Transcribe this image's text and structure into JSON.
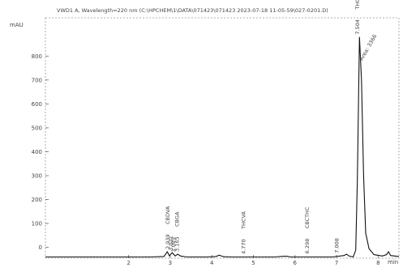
{
  "chart_data": {
    "type": "line",
    "title": "VWD1 A, Wavelength=220 nm (C:\\HPCHEM\\1\\DATA\\071423\\071423 2023-07-18 11-05-59\\027-0201.D)",
    "ylabel": "mAU",
    "xlabel": "min",
    "xlim": [
      0,
      8.5
    ],
    "ylim": [
      -45,
      960
    ],
    "x_ticks": [
      2,
      3,
      4,
      5,
      6,
      7,
      8
    ],
    "y_ticks": [
      0,
      100,
      200,
      300,
      400,
      500,
      600,
      700,
      800
    ],
    "grid": false,
    "series": [
      {
        "x": [
          0.0,
          2.5,
          2.85,
          2.93,
          2.98,
          3.05,
          3.12,
          3.18,
          3.25,
          3.4,
          3.9,
          4.1,
          4.18,
          4.28,
          4.5,
          5.5,
          5.75,
          5.8,
          5.9,
          6.5,
          6.9,
          7.18,
          7.24,
          7.3,
          7.4,
          7.46,
          7.5,
          7.55,
          7.6,
          7.65,
          7.7,
          7.78,
          7.9,
          8.1,
          8.2,
          8.25,
          8.3,
          8.5
        ],
        "y": [
          -40,
          -40,
          -38,
          -18,
          -35,
          -22,
          -36,
          -28,
          -36,
          -40,
          -40,
          -38,
          -32,
          -39,
          -40,
          -40,
          -37,
          -37,
          -40,
          -40,
          -40,
          -34,
          -28,
          -36,
          -40,
          -12,
          280,
          880,
          700,
          300,
          60,
          -5,
          -30,
          -36,
          -30,
          -18,
          -34,
          -38
        ]
      }
    ],
    "peak_labels": [
      {
        "time": "2.939",
        "name": "CBDVA",
        "x": 2.939,
        "y": -18
      },
      {
        "time": "3.165",
        "name": "CBGA",
        "x": 3.165,
        "y": -28
      },
      {
        "time": "3.021",
        "name": "",
        "x": 3.021,
        "y": -24
      },
      {
        "time": "3.085",
        "name": "",
        "x": 3.085,
        "y": -30
      },
      {
        "time": "4.770",
        "name": "THCVA",
        "x": 4.77,
        "y": -38
      },
      {
        "time": "6.298",
        "name": "CBCTHC",
        "x": 6.298,
        "y": -36
      },
      {
        "time": "7.008",
        "name": "",
        "x": 7.008,
        "y": -34
      },
      {
        "time": "7.504",
        "name": "THCA",
        "x": 7.504,
        "y": 880
      }
    ],
    "annotations": [
      {
        "text": "Area: 3366",
        "x": 7.62,
        "y": 780
      }
    ]
  }
}
